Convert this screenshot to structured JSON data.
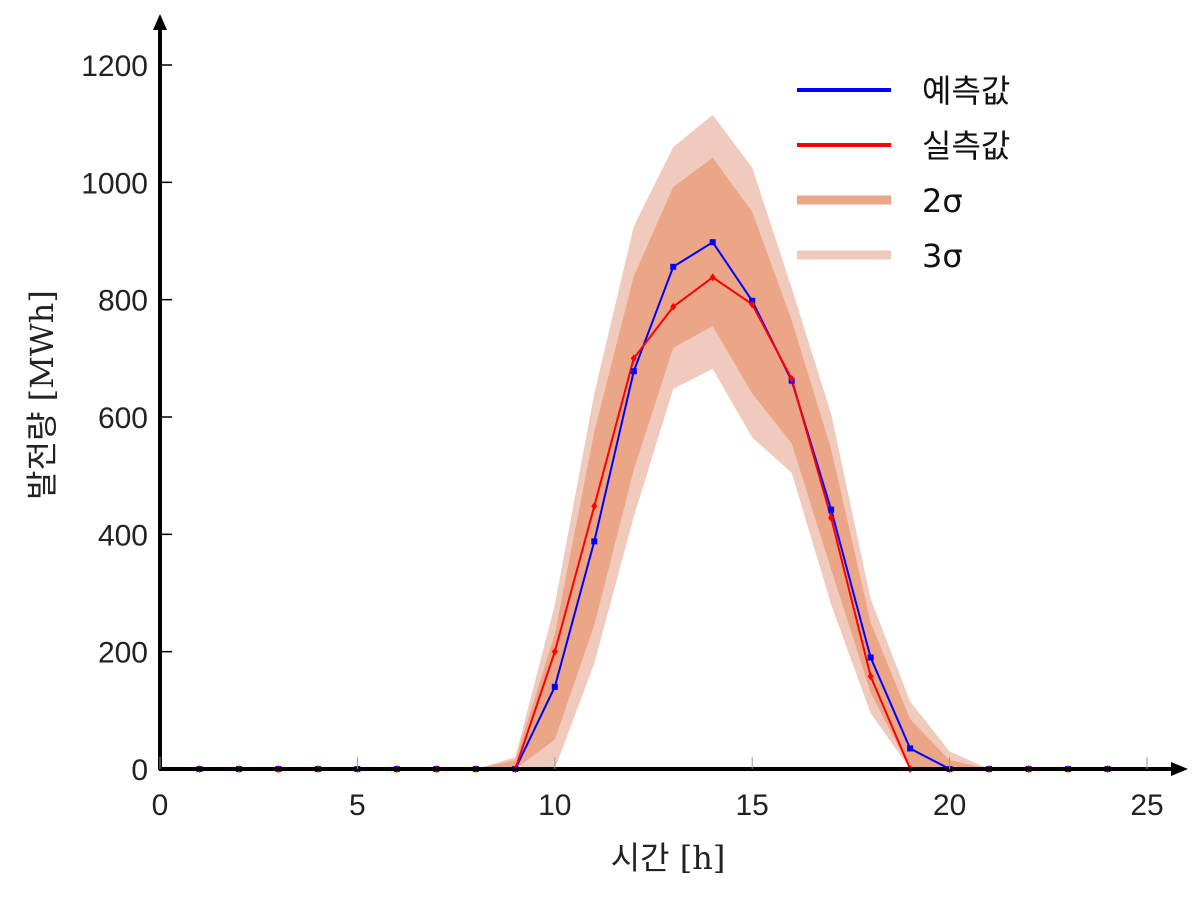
{
  "chart_data": {
    "type": "line",
    "xlabel": "시간 [h]",
    "ylabel": "발전량 [MWh]",
    "xlim": [
      0,
      25
    ],
    "ylim": [
      0,
      1200
    ],
    "x_ticks": [
      0,
      5,
      10,
      15,
      20,
      25
    ],
    "y_ticks": [
      0,
      200,
      400,
      600,
      800,
      1000,
      1200
    ],
    "grid": false,
    "legend_position": "top-right",
    "x": [
      1,
      2,
      3,
      4,
      5,
      6,
      7,
      8,
      9,
      10,
      11,
      12,
      13,
      14,
      15,
      16,
      17,
      18,
      19,
      20,
      21,
      22,
      23,
      24
    ],
    "series": [
      {
        "name": "예측값",
        "color": "#0000ff",
        "marker": "square",
        "values": [
          0,
          0,
          0,
          0,
          0,
          0,
          0,
          0,
          0,
          140,
          388,
          678,
          856,
          898,
          798,
          662,
          442,
          190,
          35,
          0,
          0,
          0,
          0,
          0
        ]
      },
      {
        "name": "실측값",
        "color": "#ff0000",
        "marker": "diamond",
        "values": [
          0,
          0,
          0,
          0,
          0,
          0,
          0,
          0,
          0,
          200,
          448,
          700,
          788,
          838,
          792,
          665,
          428,
          158,
          0,
          0,
          0,
          0,
          0,
          0
        ]
      }
    ],
    "bands": [
      {
        "name": "3σ",
        "color": "#f0cbbd",
        "lower": [
          0,
          0,
          0,
          0,
          0,
          0,
          0,
          0,
          0,
          0,
          180,
          430,
          648,
          682,
          565,
          505,
          280,
          95,
          0,
          0,
          0,
          0,
          0,
          0
        ],
        "upper": [
          0,
          0,
          0,
          0,
          0,
          0,
          0,
          0,
          20,
          280,
          640,
          925,
          1060,
          1115,
          1025,
          820,
          605,
          290,
          115,
          30,
          0,
          0,
          0,
          0
        ]
      },
      {
        "name": "2σ",
        "color": "#eba587",
        "lower": [
          0,
          0,
          0,
          0,
          0,
          0,
          0,
          0,
          0,
          50,
          245,
          510,
          718,
          755,
          640,
          555,
          340,
          130,
          0,
          0,
          0,
          0,
          0,
          0
        ],
        "upper": [
          0,
          0,
          0,
          0,
          0,
          0,
          0,
          0,
          15,
          230,
          575,
          840,
          992,
          1042,
          950,
          765,
          545,
          250,
          85,
          15,
          0,
          0,
          0,
          0
        ]
      }
    ],
    "legend": [
      {
        "label": "예측값",
        "color": "#0000ff"
      },
      {
        "label": "실측값",
        "color": "#ff0000"
      },
      {
        "label": "2σ",
        "color": "#eba587"
      },
      {
        "label": "3σ",
        "color": "#f0cbbd"
      }
    ]
  }
}
